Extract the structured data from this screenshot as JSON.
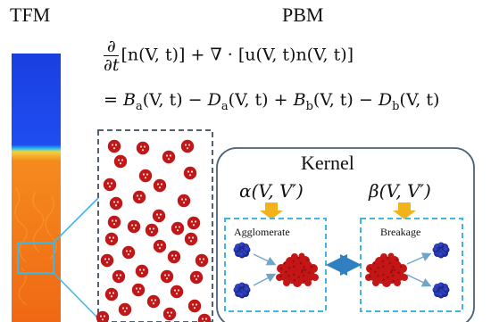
{
  "headers": {
    "tfm": "TFM",
    "pbm": "PBM"
  },
  "equation": {
    "frac_num": "∂",
    "frac_den": "∂t",
    "line1_rest": "[n(V, t)] + ∇ · [u(V, t)n(V, t)]",
    "line2": "= B_a(V, t) − D_a(V, t) + B_b(V, t) − D_b(V, t)"
  },
  "kernel": {
    "title": "Kernel",
    "alpha": "α(V, V′)",
    "beta": "β(V, V′)",
    "agglomerate_label": "Agglomerate",
    "breakage_label": "Breakage"
  },
  "colors": {
    "tfm_top": "#1a3fe0",
    "tfm_bottom": "#f26b16",
    "particle": "#c01818",
    "callout_line": "#3fb7e6",
    "dashed_box": "#3fb7e6",
    "kernel_border": "#4a6378",
    "arrow_gold": "#f2b21a",
    "blue_particle": "#1f2fa8",
    "red_cluster": "#c41616"
  }
}
